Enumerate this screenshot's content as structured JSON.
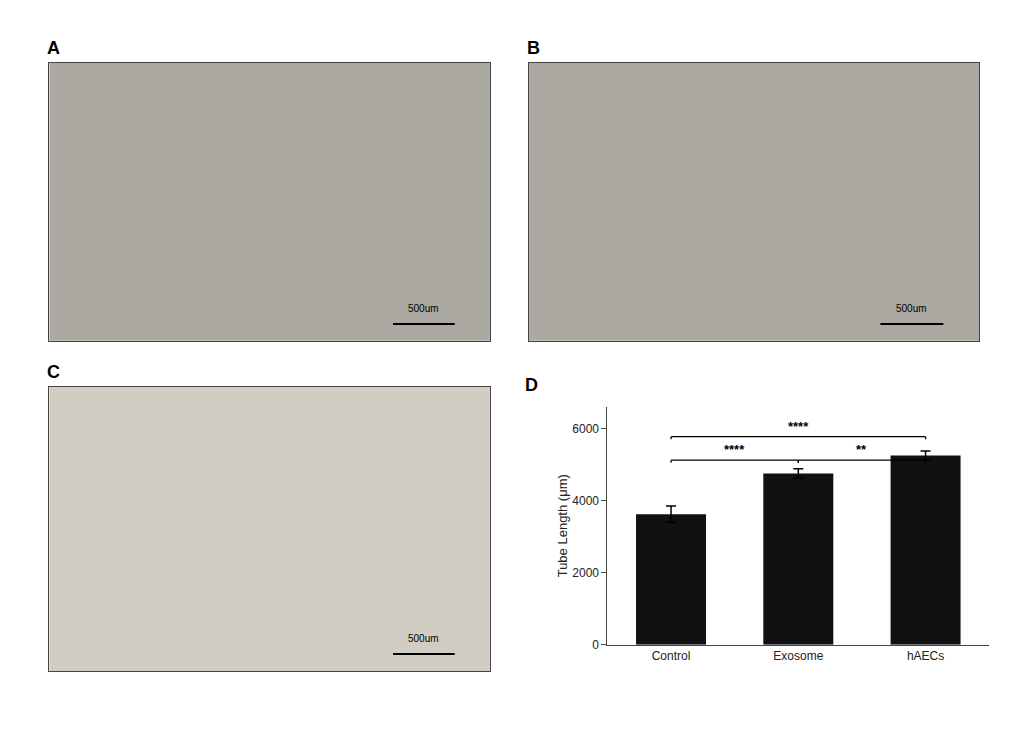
{
  "chart_data": [
    {
      "type": "image",
      "title": "A",
      "color": "#aca8a2",
      "annotations": [
        "500um"
      ]
    },
    {
      "type": "image",
      "title": "B",
      "color": "#aca8a2",
      "annotations": [
        "500um"
      ]
    },
    {
      "type": "image",
      "title": "C",
      "color": "#d2cdc3",
      "annotations": [
        "500um"
      ]
    },
    {
      "type": "bar",
      "title": "D",
      "categories": [
        "Control",
        "Exosome",
        "hAECs"
      ],
      "values": [
        3620,
        4750,
        5250
      ],
      "errors": [
        230,
        130,
        120
      ],
      "color": "#111111",
      "ylabel": "Tube Length (μm)",
      "ylim": [
        0,
        6600
      ],
      "yticks": [
        0,
        2000,
        4000,
        6000
      ],
      "grid": false,
      "annotations": [
        {
          "text": "****",
          "from": "Control",
          "to": "Exosome",
          "y": 5050,
          "height": 70
        },
        {
          "text": "**",
          "from": "Exosome",
          "to": "hAECs",
          "y": 5050,
          "height": 70
        },
        {
          "text": "****",
          "from": "Control",
          "to": "hAECs",
          "y": 5700,
          "height": 70
        }
      ]
    }
  ]
}
